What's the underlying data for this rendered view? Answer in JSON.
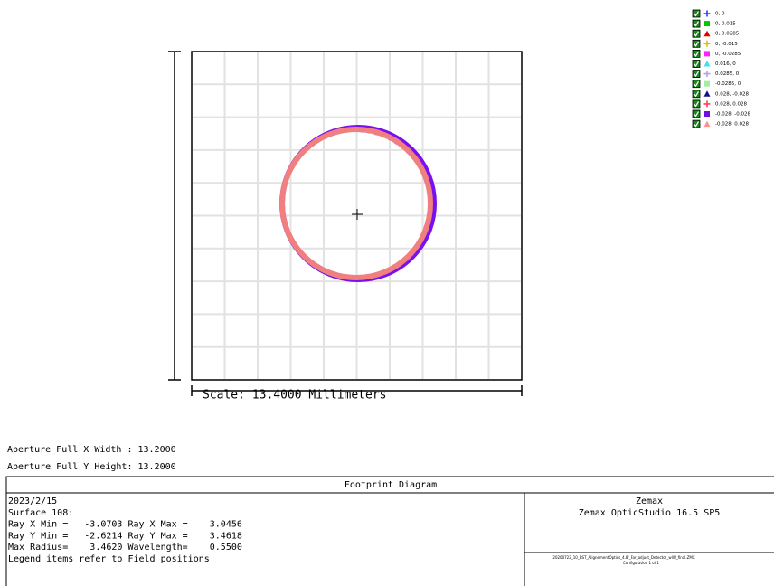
{
  "legend": [
    {
      "label": "0, 0",
      "color": "#2040ff",
      "marker": "plus"
    },
    {
      "label": "0, 0.015",
      "color": "#00c800",
      "marker": "square"
    },
    {
      "label": "0, 0.0285",
      "color": "#e00000",
      "marker": "triangle"
    },
    {
      "label": "0, -0.015",
      "color": "#d8c000",
      "marker": "plus"
    },
    {
      "label": "0, -0.0285",
      "color": "#ff20ff",
      "marker": "square"
    },
    {
      "label": "0.016, 0",
      "color": "#40e0f0",
      "marker": "triangle"
    },
    {
      "label": "0.0285, 0",
      "color": "#b0a0f0",
      "marker": "plus"
    },
    {
      "label": "-0.0285, 0",
      "color": "#a0f0a0",
      "marker": "square"
    },
    {
      "label": "0.028, -0.028",
      "color": "#101090",
      "marker": "triangle"
    },
    {
      "label": "0.028, 0.028",
      "color": "#ff4060",
      "marker": "plus"
    },
    {
      "label": "-0.028, -0.028",
      "color": "#7010e0",
      "marker": "square"
    },
    {
      "label": "-0.028, 0.028",
      "color": "#ff9090",
      "marker": "triangle"
    }
  ],
  "scale": "Scale: 13.4000 Millimeters",
  "aperture": [
    "Aperture Full X Width : 13.2000",
    "Aperture Full Y Height: 13.2000"
  ],
  "footer": {
    "title": "Footprint Diagram",
    "lines": [
      "2023/2/15",
      "Surface 108:",
      "Ray X Min =   -3.0703 Ray X Max =    3.0456",
      "Ray Y Min =   -2.6214 Ray Y Max =    3.4618",
      "Max Radius=    3.4620 Wavelength=    0.5500",
      "Legend items refer to Field positions"
    ],
    "company": "Zemax",
    "product": "Zemax OpticStudio 16.5 SP5",
    "file": "20200722_10_BST_AlignementOptics_4.8'_Far_adjust_Detector_wllU_final.ZMX",
    "config": "Configuration 1 of 1"
  }
}
